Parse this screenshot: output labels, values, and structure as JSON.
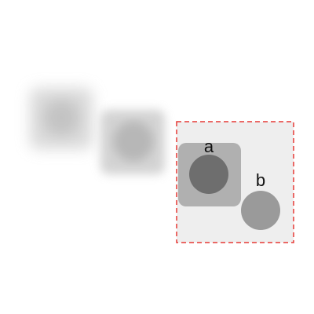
{
  "diagram": {
    "labels": {
      "a": "a",
      "b": "b"
    },
    "colors": {
      "background": "#ffffff",
      "frame_fill": "#eeeeee",
      "frame_border": "#e53935",
      "square_fill": "#b0b0b0",
      "inner_circle_fill": "#6e6e6e",
      "circle_b_fill": "#9a9a9a",
      "ghost_fill": "#cfcfcf"
    },
    "frame_style": "dashed",
    "ghost_count": 2
  }
}
